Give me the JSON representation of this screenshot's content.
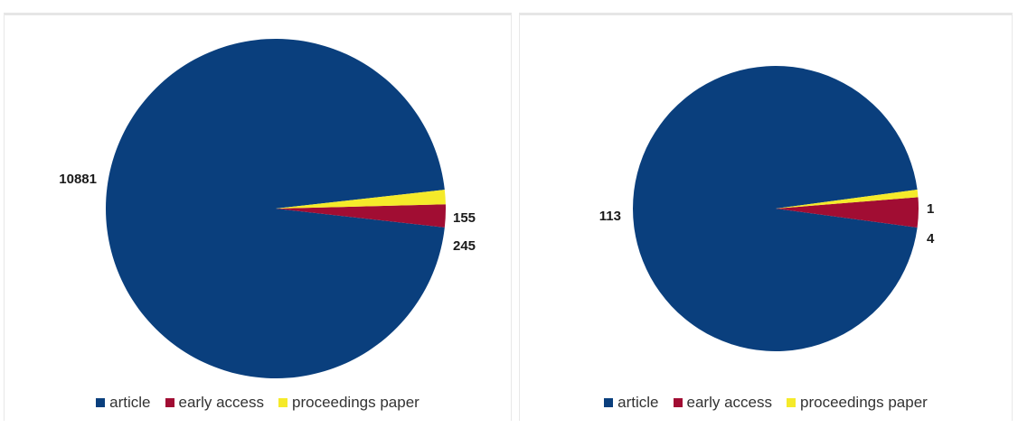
{
  "chart_data": [
    {
      "type": "pie",
      "categories": [
        "article",
        "early access",
        "proceedings paper"
      ],
      "values": [
        10881,
        245,
        155
      ],
      "data_labels": [
        "10881",
        "245",
        "155"
      ],
      "colors": [
        "#0a3f7d",
        "#a10d33",
        "#f5ea2a"
      ],
      "legend_position": "bottom",
      "legend": {
        "items": [
          {
            "label": "article",
            "color": "#0a3f7d"
          },
          {
            "label": "early access",
            "color": "#a10d33"
          },
          {
            "label": "proceedings paper",
            "color": "#f5ea2a"
          }
        ]
      }
    },
    {
      "type": "pie",
      "categories": [
        "article",
        "early access",
        "proceedings paper"
      ],
      "values": [
        113,
        4,
        1
      ],
      "data_labels": [
        "113",
        "4",
        "1"
      ],
      "colors": [
        "#0a3f7d",
        "#a10d33",
        "#f5ea2a"
      ],
      "legend_position": "bottom",
      "legend": {
        "items": [
          {
            "label": "article",
            "color": "#0a3f7d"
          },
          {
            "label": "early access",
            "color": "#a10d33"
          },
          {
            "label": "proceedings paper",
            "color": "#f5ea2a"
          }
        ]
      }
    }
  ]
}
